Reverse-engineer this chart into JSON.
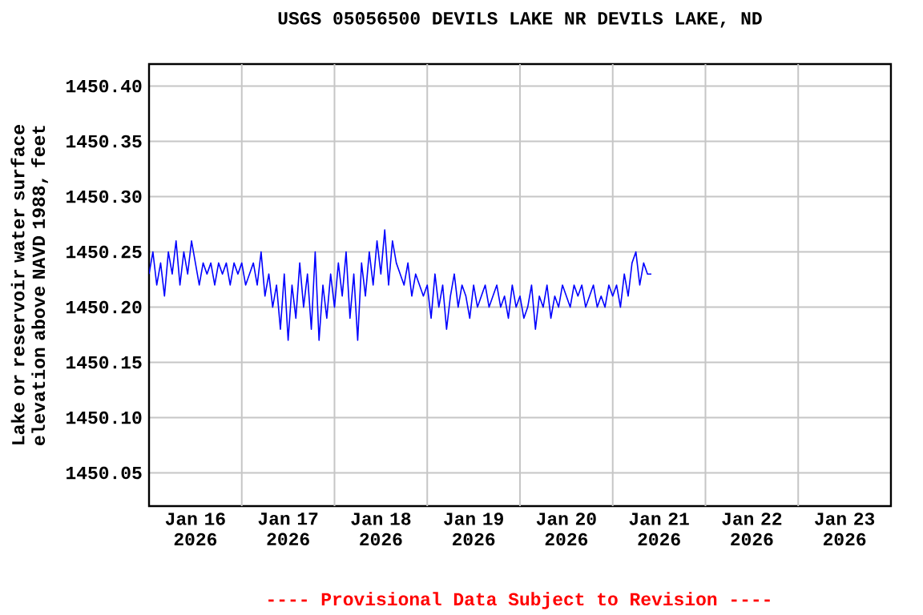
{
  "chart_data": {
    "type": "line",
    "title": "USGS 05056500 DEVILS LAKE NR DEVILS LAKE, ND",
    "ylabel": "Lake or reservoir water surface elevation above NAVD 1988, feet",
    "annotations": [
      "---- Provisional Data Subject to Revision ----"
    ],
    "xlim": [
      "2026-01-16T00:00",
      "2026-01-24T00:00"
    ],
    "xticks": [
      {
        "value": "2026-01-16T12:00",
        "label": "Jan 16 2026"
      },
      {
        "value": "2026-01-17T12:00",
        "label": "Jan 17 2026"
      },
      {
        "value": "2026-01-18T12:00",
        "label": "Jan 18 2026"
      },
      {
        "value": "2026-01-19T12:00",
        "label": "Jan 19 2026"
      },
      {
        "value": "2026-01-20T12:00",
        "label": "Jan 20 2026"
      },
      {
        "value": "2026-01-21T12:00",
        "label": "Jan 21 2026"
      },
      {
        "value": "2026-01-22T12:00",
        "label": "Jan 22 2026"
      },
      {
        "value": "2026-01-23T12:00",
        "label": "Jan 23 2026"
      },
      {
        "value": "2026-01-17T00:00",
        "label": null
      },
      {
        "value": "2026-01-18T00:00",
        "label": null
      },
      {
        "value": "2026-01-19T00:00",
        "label": null
      },
      {
        "value": "2026-01-20T00:00",
        "label": null
      },
      {
        "value": "2026-01-21T00:00",
        "label": null
      },
      {
        "value": "2026-01-22T00:00",
        "label": null
      },
      {
        "value": "2026-01-23T00:00",
        "label": null
      }
    ],
    "ylim": [
      1450.02,
      1450.42
    ],
    "yticks": [
      {
        "value": 1450.05,
        "label": "1450.05"
      },
      {
        "value": 1450.1,
        "label": "1450.10"
      },
      {
        "value": 1450.15,
        "label": "1450.15"
      },
      {
        "value": 1450.2,
        "label": "1450.20"
      },
      {
        "value": 1450.25,
        "label": "1450.25"
      },
      {
        "value": 1450.3,
        "label": "1450.30"
      },
      {
        "value": 1450.35,
        "label": "1450.35"
      },
      {
        "value": 1450.4,
        "label": "1450.40"
      }
    ],
    "grid": true,
    "series": [
      {
        "color": "#0000ff",
        "x": [
          "2026-01-16T00:00",
          "2026-01-16T01:00",
          "2026-01-16T02:00",
          "2026-01-16T03:00",
          "2026-01-16T04:00",
          "2026-01-16T05:00",
          "2026-01-16T06:00",
          "2026-01-16T07:00",
          "2026-01-16T08:00",
          "2026-01-16T09:00",
          "2026-01-16T10:00",
          "2026-01-16T11:00",
          "2026-01-16T12:00",
          "2026-01-16T13:00",
          "2026-01-16T14:00",
          "2026-01-16T15:00",
          "2026-01-16T16:00",
          "2026-01-16T17:00",
          "2026-01-16T18:00",
          "2026-01-16T19:00",
          "2026-01-16T20:00",
          "2026-01-16T21:00",
          "2026-01-16T22:00",
          "2026-01-16T23:00",
          "2026-01-17T00:00",
          "2026-01-17T01:00",
          "2026-01-17T02:00",
          "2026-01-17T03:00",
          "2026-01-17T04:00",
          "2026-01-17T05:00",
          "2026-01-17T06:00",
          "2026-01-17T07:00",
          "2026-01-17T08:00",
          "2026-01-17T09:00",
          "2026-01-17T10:00",
          "2026-01-17T11:00",
          "2026-01-17T12:00",
          "2026-01-17T13:00",
          "2026-01-17T14:00",
          "2026-01-17T15:00",
          "2026-01-17T16:00",
          "2026-01-17T17:00",
          "2026-01-17T18:00",
          "2026-01-17T19:00",
          "2026-01-17T20:00",
          "2026-01-17T21:00",
          "2026-01-17T22:00",
          "2026-01-17T23:00",
          "2026-01-18T00:00",
          "2026-01-18T01:00",
          "2026-01-18T02:00",
          "2026-01-18T03:00",
          "2026-01-18T04:00",
          "2026-01-18T05:00",
          "2026-01-18T06:00",
          "2026-01-18T07:00",
          "2026-01-18T08:00",
          "2026-01-18T09:00",
          "2026-01-18T10:00",
          "2026-01-18T11:00",
          "2026-01-18T12:00",
          "2026-01-18T13:00",
          "2026-01-18T14:00",
          "2026-01-18T15:00",
          "2026-01-18T16:00",
          "2026-01-18T17:00",
          "2026-01-18T18:00",
          "2026-01-18T19:00",
          "2026-01-18T20:00",
          "2026-01-18T21:00",
          "2026-01-18T22:00",
          "2026-01-18T23:00",
          "2026-01-19T00:00",
          "2026-01-19T01:00",
          "2026-01-19T02:00",
          "2026-01-19T03:00",
          "2026-01-19T04:00",
          "2026-01-19T05:00",
          "2026-01-19T06:00",
          "2026-01-19T07:00",
          "2026-01-19T08:00",
          "2026-01-19T09:00",
          "2026-01-19T10:00",
          "2026-01-19T11:00",
          "2026-01-19T12:00",
          "2026-01-19T13:00",
          "2026-01-19T14:00",
          "2026-01-19T15:00",
          "2026-01-19T16:00",
          "2026-01-19T17:00",
          "2026-01-19T18:00",
          "2026-01-19T19:00",
          "2026-01-19T20:00",
          "2026-01-19T21:00",
          "2026-01-19T22:00",
          "2026-01-19T23:00",
          "2026-01-20T00:00",
          "2026-01-20T01:00",
          "2026-01-20T02:00",
          "2026-01-20T03:00",
          "2026-01-20T04:00",
          "2026-01-20T05:00",
          "2026-01-20T06:00",
          "2026-01-20T07:00",
          "2026-01-20T08:00",
          "2026-01-20T09:00",
          "2026-01-20T10:00",
          "2026-01-20T11:00",
          "2026-01-20T12:00",
          "2026-01-20T13:00",
          "2026-01-20T14:00",
          "2026-01-20T15:00",
          "2026-01-20T16:00",
          "2026-01-20T17:00",
          "2026-01-20T18:00",
          "2026-01-20T19:00",
          "2026-01-20T20:00",
          "2026-01-20T21:00",
          "2026-01-20T22:00",
          "2026-01-20T23:00",
          "2026-01-21T00:00",
          "2026-01-21T01:00",
          "2026-01-21T02:00",
          "2026-01-21T03:00",
          "2026-01-21T04:00",
          "2026-01-21T05:00",
          "2026-01-21T06:00",
          "2026-01-21T07:00",
          "2026-01-21T08:00",
          "2026-01-21T09:00",
          "2026-01-21T10:00"
        ],
        "values": [
          1450.23,
          1450.25,
          1450.22,
          1450.24,
          1450.21,
          1450.25,
          1450.23,
          1450.26,
          1450.22,
          1450.25,
          1450.23,
          1450.26,
          1450.24,
          1450.22,
          1450.24,
          1450.23,
          1450.24,
          1450.22,
          1450.24,
          1450.23,
          1450.24,
          1450.22,
          1450.24,
          1450.23,
          1450.24,
          1450.22,
          1450.23,
          1450.24,
          1450.22,
          1450.25,
          1450.21,
          1450.23,
          1450.2,
          1450.22,
          1450.18,
          1450.23,
          1450.17,
          1450.22,
          1450.19,
          1450.24,
          1450.2,
          1450.23,
          1450.18,
          1450.25,
          1450.17,
          1450.22,
          1450.19,
          1450.23,
          1450.2,
          1450.24,
          1450.21,
          1450.25,
          1450.19,
          1450.23,
          1450.17,
          1450.24,
          1450.21,
          1450.25,
          1450.22,
          1450.26,
          1450.23,
          1450.27,
          1450.22,
          1450.26,
          1450.24,
          1450.23,
          1450.22,
          1450.24,
          1450.21,
          1450.23,
          1450.22,
          1450.21,
          1450.22,
          1450.19,
          1450.23,
          1450.2,
          1450.22,
          1450.18,
          1450.21,
          1450.23,
          1450.2,
          1450.22,
          1450.21,
          1450.19,
          1450.22,
          1450.2,
          1450.21,
          1450.22,
          1450.2,
          1450.21,
          1450.22,
          1450.2,
          1450.21,
          1450.19,
          1450.22,
          1450.2,
          1450.21,
          1450.19,
          1450.2,
          1450.22,
          1450.18,
          1450.21,
          1450.2,
          1450.22,
          1450.19,
          1450.21,
          1450.2,
          1450.22,
          1450.21,
          1450.2,
          1450.22,
          1450.21,
          1450.22,
          1450.2,
          1450.21,
          1450.22,
          1450.2,
          1450.21,
          1450.2,
          1450.22,
          1450.21,
          1450.22,
          1450.2,
          1450.23,
          1450.21,
          1450.24,
          1450.25,
          1450.22,
          1450.24,
          1450.23,
          1450.23
        ]
      }
    ]
  }
}
